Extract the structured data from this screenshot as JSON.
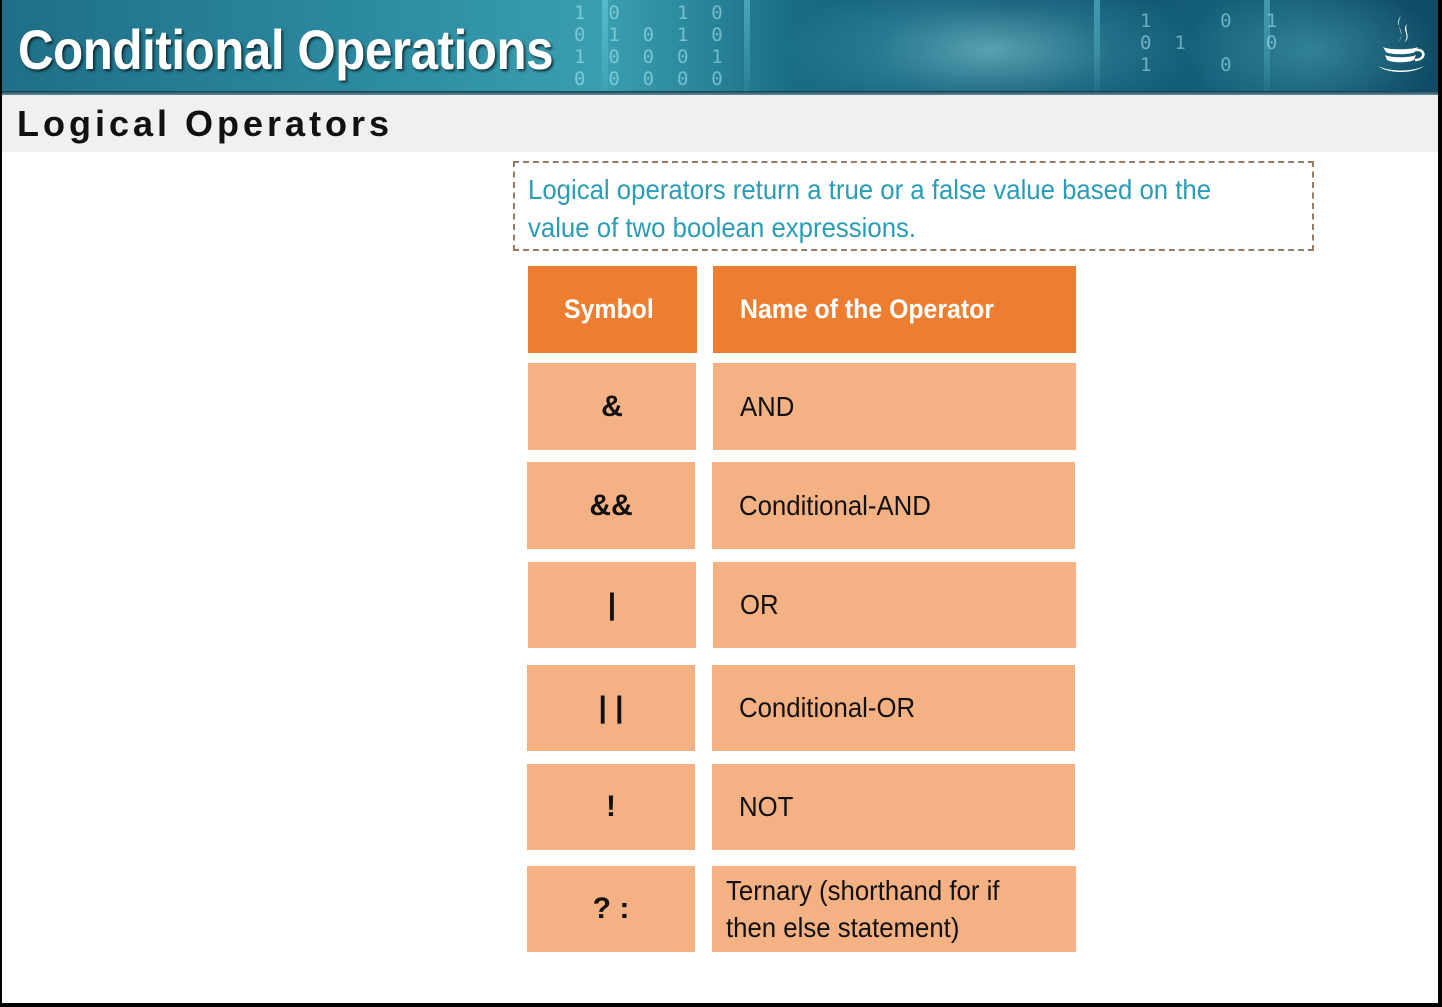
{
  "slide": {
    "title": "Conditional Operations",
    "subtitle": "Logical Operators",
    "description": "Logical operators return a true or a false value based on the value of two boolean expressions."
  },
  "table": {
    "headers": [
      "Symbol",
      "Name of the Operator"
    ],
    "rows": [
      {
        "symbol": "&",
        "name": "AND"
      },
      {
        "symbol": "&&",
        "name": "Conditional-AND"
      },
      {
        "symbol": "|",
        "name": "OR"
      },
      {
        "symbol": "| |",
        "name": "Conditional-OR"
      },
      {
        "symbol": "!",
        "name": "NOT"
      },
      {
        "symbol": "? :",
        "name": "Ternary (shorthand for if then else statement)"
      }
    ]
  },
  "colors": {
    "header_fill": "#ed7d31",
    "cell_fill": "#f4b183",
    "description_text": "#2a9cb6",
    "banner": "#1f6f86"
  },
  "icons": {
    "brand": "java-coffee-cup-icon"
  }
}
